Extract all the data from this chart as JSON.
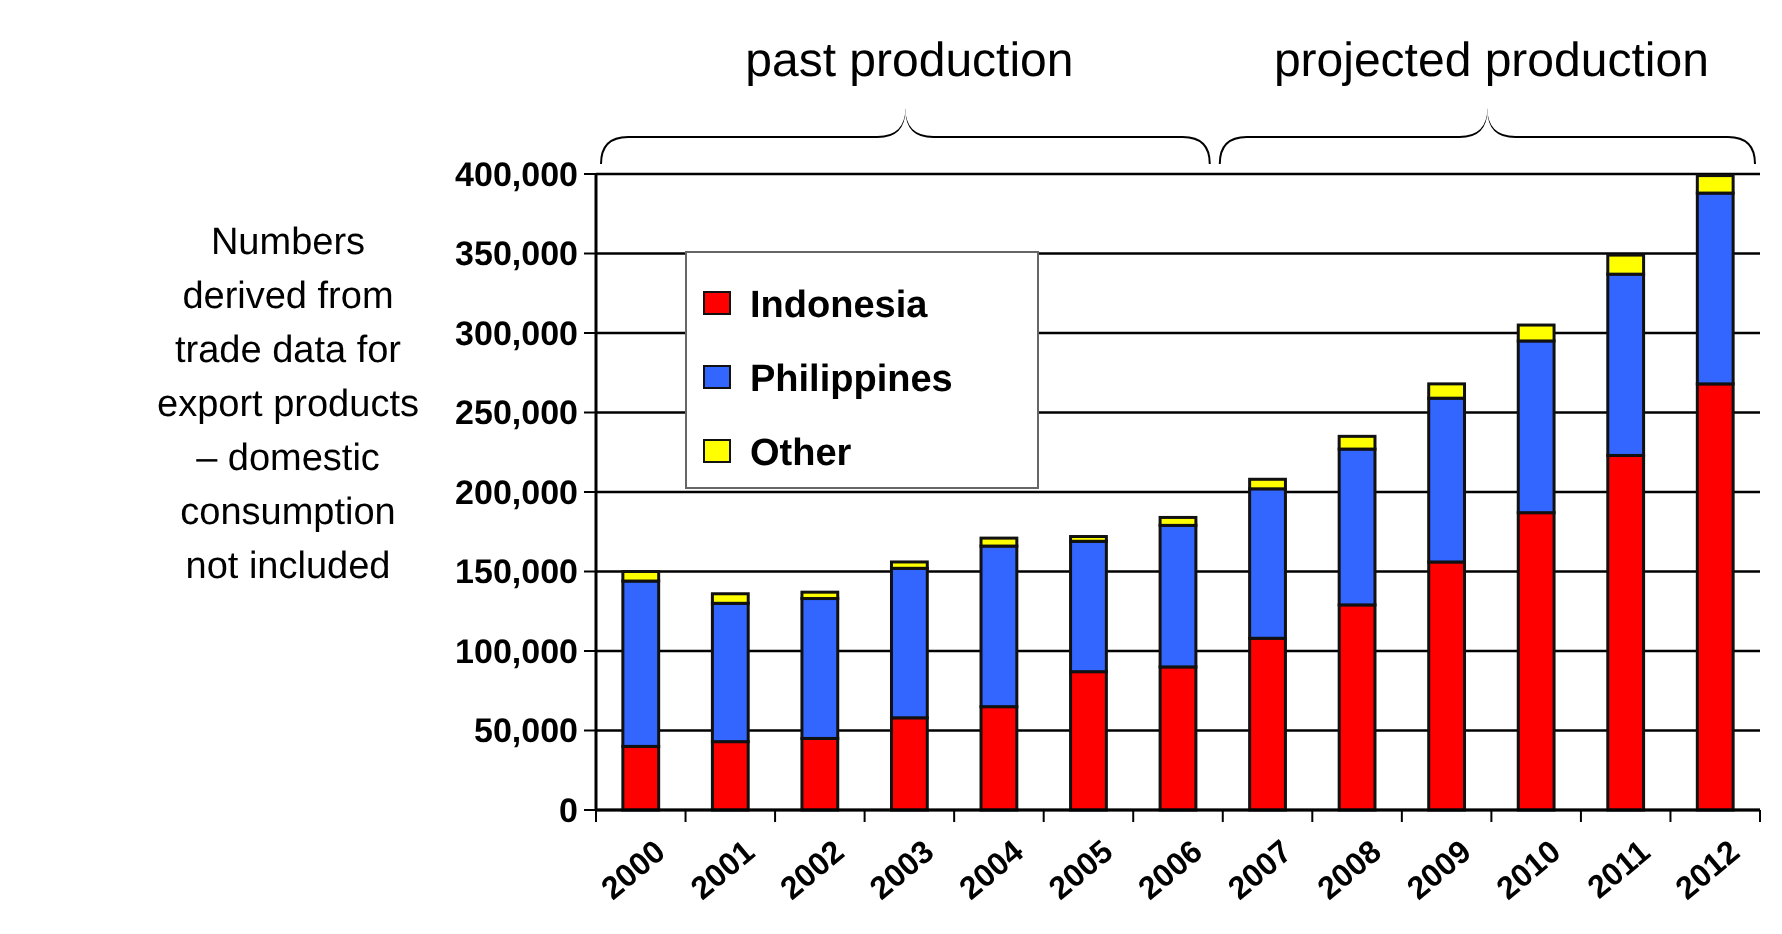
{
  "chart_data": {
    "type": "bar",
    "stacked": true,
    "categories": [
      "2000",
      "2001",
      "2002",
      "2003",
      "2004",
      "2005",
      "2006",
      "2007",
      "2008",
      "2009",
      "2010",
      "2011",
      "2012"
    ],
    "series": [
      {
        "name": "Indonesia",
        "color": "#ff0000",
        "values": [
          40000,
          43000,
          45000,
          58000,
          65000,
          87000,
          90000,
          108000,
          129000,
          156000,
          187000,
          223000,
          268000
        ]
      },
      {
        "name": "Philippines",
        "color": "#3366ff",
        "values": [
          104000,
          87000,
          88000,
          94000,
          101000,
          82000,
          89000,
          94000,
          98000,
          103000,
          108000,
          114000,
          120000
        ]
      },
      {
        "name": "Other",
        "color": "#ffff00",
        "values": [
          6000,
          6000,
          4000,
          4000,
          5000,
          3000,
          5000,
          6000,
          8000,
          9000,
          10000,
          12000,
          11000
        ]
      }
    ],
    "ylim": [
      0,
      400000
    ],
    "yticks": [
      {
        "value": 0,
        "label": "0"
      },
      {
        "value": 50000,
        "label": "50,000"
      },
      {
        "value": 100000,
        "label": "100,000"
      },
      {
        "value": 150000,
        "label": "150,000"
      },
      {
        "value": 200000,
        "label": "200,000"
      },
      {
        "value": 250000,
        "label": "250,000"
      },
      {
        "value": 300000,
        "label": "300,000"
      },
      {
        "value": 350000,
        "label": "350,000"
      },
      {
        "value": 400000,
        "label": "400,000"
      }
    ],
    "grid": "y",
    "legend": "top left",
    "annotations": [
      "past production",
      "projected production",
      "Numbers derived from trade data for export products – domestic consumption not included"
    ]
  }
}
